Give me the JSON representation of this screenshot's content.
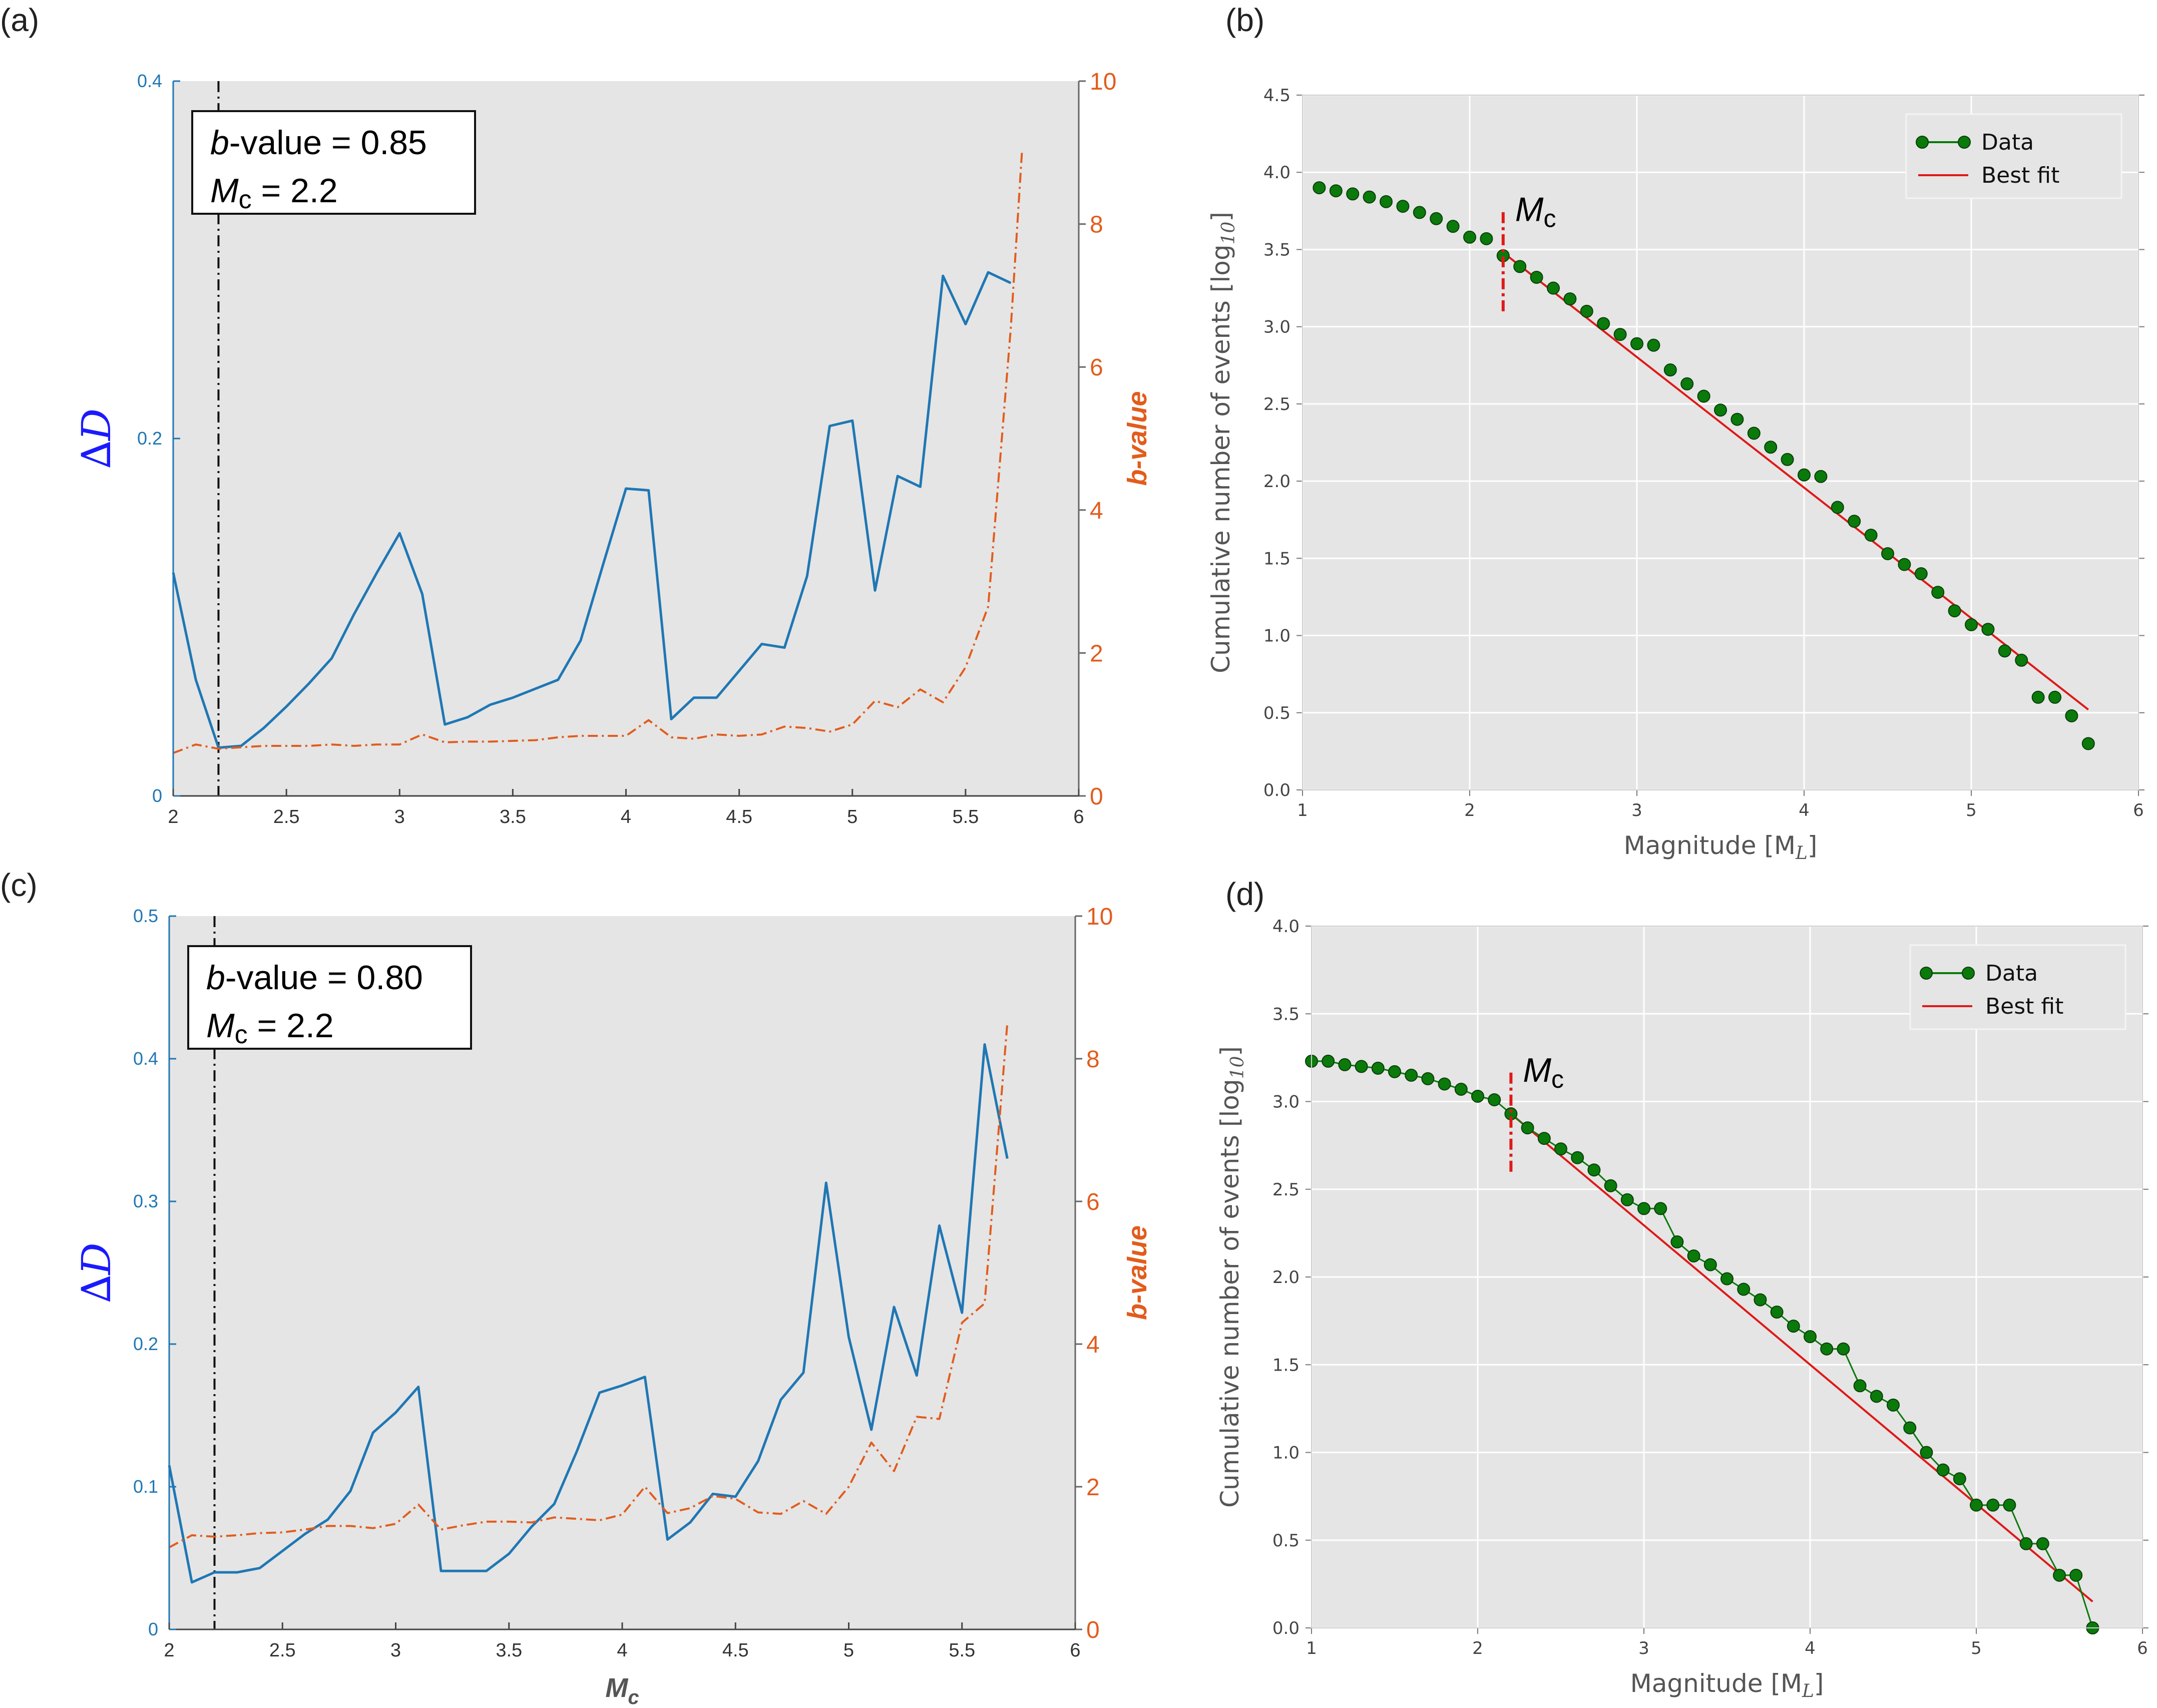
{
  "chart_data": [
    {
      "id": "a",
      "type": "line",
      "panel_label": "(a)",
      "annotation": {
        "line1_prefix": "b",
        "line1_rest": "-value = 0.85",
        "line2_prefix": "M",
        "line2_sub": "c",
        "line2_rest": " = 2.2"
      },
      "left_ylabel": "∆D",
      "right_ylabel": "b-value",
      "xlim": [
        2,
        6
      ],
      "ylim_left": [
        0,
        0.4
      ],
      "ylim_right": [
        0,
        10
      ],
      "xticks": [
        "2",
        "2.5",
        "3",
        "3.5",
        "4",
        "4.5",
        "5",
        "5.5",
        "6"
      ],
      "yticks_left": [
        "0",
        "0.2",
        "0.4"
      ],
      "yticks_right": [
        "0",
        "2",
        "4",
        "6",
        "8",
        "10"
      ],
      "mc_line_x": 2.2,
      "series": [
        {
          "name": "∆D",
          "axis": "left",
          "color": "#1f77b4",
          "x": [
            2.0,
            2.1,
            2.2,
            2.3,
            2.4,
            2.5,
            2.6,
            2.7,
            2.8,
            2.9,
            3.0,
            3.1,
            3.2,
            3.3,
            3.4,
            3.5,
            3.6,
            3.7,
            3.8,
            3.9,
            4.0,
            4.1,
            4.2,
            4.3,
            4.4,
            4.5,
            4.6,
            4.7,
            4.8,
            4.9,
            5.0,
            5.1,
            5.2,
            5.3,
            5.4,
            5.5,
            5.6,
            5.7
          ],
          "y": [
            0.125,
            0.065,
            0.027,
            0.028,
            0.038,
            0.05,
            0.063,
            0.077,
            0.102,
            0.125,
            0.147,
            0.113,
            0.04,
            0.044,
            0.051,
            0.055,
            0.06,
            0.065,
            0.087,
            0.13,
            0.172,
            0.171,
            0.043,
            0.055,
            0.055,
            0.07,
            0.085,
            0.083,
            0.123,
            0.207,
            0.21,
            0.115,
            0.179,
            0.173,
            0.291,
            0.264,
            0.293,
            0.287
          ]
        },
        {
          "name": "b-value",
          "axis": "right",
          "color": "#e25c1c",
          "dash": true,
          "x": [
            2.0,
            2.1,
            2.2,
            2.3,
            2.4,
            2.5,
            2.6,
            2.7,
            2.8,
            2.9,
            3.0,
            3.1,
            3.2,
            3.3,
            3.4,
            3.5,
            3.6,
            3.7,
            3.8,
            3.9,
            4.0,
            4.1,
            4.2,
            4.3,
            4.4,
            4.5,
            4.6,
            4.7,
            4.8,
            4.9,
            5.0,
            5.1,
            5.2,
            5.3,
            5.4,
            5.5,
            5.6,
            5.7,
            5.75
          ],
          "y": [
            0.6,
            0.72,
            0.66,
            0.68,
            0.7,
            0.7,
            0.7,
            0.72,
            0.7,
            0.72,
            0.72,
            0.86,
            0.75,
            0.76,
            0.76,
            0.77,
            0.78,
            0.82,
            0.84,
            0.84,
            0.84,
            1.06,
            0.82,
            0.8,
            0.86,
            0.84,
            0.86,
            0.97,
            0.95,
            0.9,
            1.0,
            1.33,
            1.24,
            1.49,
            1.31,
            1.8,
            2.65,
            6.55,
            9.05
          ]
        }
      ]
    },
    {
      "id": "b",
      "type": "scatter",
      "panel_label": "(b)",
      "xlabel": "Magnitude [M",
      "xlabel_sub": "L",
      "xlabel_end": "]",
      "ylabel": "Cumulative number of events [log",
      "ylabel_sub": "10",
      "ylabel_end": "]",
      "xlim": [
        1,
        6
      ],
      "ylim": [
        0,
        4.5
      ],
      "xticks": [
        "1",
        "2",
        "3",
        "4",
        "5",
        "6"
      ],
      "yticks": [
        "0.0",
        "0.5",
        "1.0",
        "1.5",
        "2.0",
        "2.5",
        "3.0",
        "3.5",
        "4.0",
        "4.5"
      ],
      "mc_label_main": "M",
      "mc_label_sub": "c",
      "mc_x": 2.2,
      "mc_y_range": [
        3.1,
        3.75
      ],
      "legend": {
        "position": "top-right",
        "items": [
          "Data",
          "Best fit"
        ]
      },
      "data": {
        "name": "Data",
        "color": "#0a7a0a",
        "line": false,
        "x": [
          1.1,
          1.2,
          1.3,
          1.4,
          1.5,
          1.6,
          1.7,
          1.8,
          1.9,
          2.0,
          2.1,
          2.2,
          2.3,
          2.4,
          2.5,
          2.6,
          2.7,
          2.8,
          2.9,
          3.0,
          3.1,
          3.2,
          3.3,
          3.4,
          3.5,
          3.6,
          3.7,
          3.8,
          3.9,
          4.0,
          4.1,
          4.2,
          4.3,
          4.4,
          4.5,
          4.6,
          4.7,
          4.8,
          4.9,
          5.0,
          5.1,
          5.2,
          5.3,
          5.4,
          5.5,
          5.6,
          5.7
        ],
        "y": [
          3.9,
          3.88,
          3.86,
          3.84,
          3.81,
          3.78,
          3.74,
          3.7,
          3.65,
          3.58,
          3.57,
          3.46,
          3.39,
          3.32,
          3.25,
          3.18,
          3.1,
          3.02,
          2.95,
          2.89,
          2.88,
          2.72,
          2.63,
          2.55,
          2.46,
          2.4,
          2.31,
          2.22,
          2.14,
          2.04,
          2.03,
          1.83,
          1.74,
          1.65,
          1.53,
          1.46,
          1.4,
          1.28,
          1.16,
          1.07,
          1.04,
          0.9,
          0.84,
          0.6,
          0.6,
          0.48,
          0.3
        ]
      },
      "fit": {
        "name": "Best fit",
        "color": "#e01818",
        "x": [
          2.2,
          5.7
        ],
        "y": [
          3.48,
          0.52
        ]
      }
    },
    {
      "id": "c",
      "type": "line",
      "panel_label": "(c)",
      "annotation": {
        "line1_prefix": "b",
        "line1_rest": "-value = 0.80",
        "line2_prefix": "M",
        "line2_sub": "c",
        "line2_rest": " = 2.2"
      },
      "left_ylabel": "∆D",
      "right_ylabel": "b-value",
      "xlabel_main": "M",
      "xlabel_sub": "c",
      "xlim": [
        2,
        6
      ],
      "ylim_left": [
        0,
        0.5
      ],
      "ylim_right": [
        0,
        10
      ],
      "xticks": [
        "2",
        "2.5",
        "3",
        "3.5",
        "4",
        "4.5",
        "5",
        "5.5",
        "6"
      ],
      "yticks_left": [
        "0",
        "0.1",
        "0.2",
        "0.3",
        "0.4",
        "0.5"
      ],
      "yticks_right": [
        "0",
        "2",
        "4",
        "6",
        "8",
        "10"
      ],
      "mc_line_x": 2.2,
      "series": [
        {
          "name": "∆D",
          "axis": "left",
          "color": "#1f77b4",
          "x": [
            2.0,
            2.1,
            2.2,
            2.3,
            2.4,
            2.5,
            2.6,
            2.7,
            2.8,
            2.9,
            3.0,
            3.1,
            3.2,
            3.3,
            3.4,
            3.5,
            3.6,
            3.7,
            3.8,
            3.9,
            4.0,
            4.1,
            4.2,
            4.3,
            4.4,
            4.5,
            4.6,
            4.7,
            4.8,
            4.9,
            5.0,
            5.1,
            5.2,
            5.3,
            5.4,
            5.5,
            5.6,
            5.7
          ],
          "y": [
            0.115,
            0.033,
            0.04,
            0.04,
            0.043,
            0.055,
            0.067,
            0.077,
            0.097,
            0.138,
            0.152,
            0.17,
            0.041,
            0.041,
            0.041,
            0.053,
            0.072,
            0.088,
            0.125,
            0.166,
            0.171,
            0.177,
            0.063,
            0.075,
            0.095,
            0.093,
            0.118,
            0.161,
            0.18,
            0.313,
            0.205,
            0.14,
            0.226,
            0.178,
            0.283,
            0.222,
            0.41,
            0.33
          ]
        },
        {
          "name": "b-value",
          "axis": "right",
          "color": "#e25c1c",
          "dash": true,
          "x": [
            2.0,
            2.1,
            2.2,
            2.3,
            2.4,
            2.5,
            2.6,
            2.7,
            2.8,
            2.9,
            3.0,
            3.1,
            3.2,
            3.3,
            3.4,
            3.5,
            3.6,
            3.7,
            3.8,
            3.9,
            4.0,
            4.1,
            4.2,
            4.3,
            4.4,
            4.5,
            4.6,
            4.7,
            4.8,
            4.9,
            5.0,
            5.1,
            5.2,
            5.3,
            5.4,
            5.5,
            5.6,
            5.7
          ],
          "y": [
            1.15,
            1.32,
            1.3,
            1.32,
            1.35,
            1.36,
            1.4,
            1.45,
            1.45,
            1.42,
            1.48,
            1.75,
            1.4,
            1.46,
            1.51,
            1.51,
            1.5,
            1.57,
            1.55,
            1.53,
            1.61,
            2.0,
            1.63,
            1.7,
            1.87,
            1.83,
            1.64,
            1.62,
            1.8,
            1.62,
            2.0,
            2.62,
            2.22,
            2.98,
            2.95,
            4.3,
            4.57,
            8.5
          ]
        }
      ]
    },
    {
      "id": "d",
      "type": "scatter",
      "panel_label": "(d)",
      "xlabel": "Magnitude [M",
      "xlabel_sub": "L",
      "xlabel_end": "]",
      "ylabel": "Cumulative number of events [log",
      "ylabel_sub": "10",
      "ylabel_end": "]",
      "xlim": [
        1,
        6
      ],
      "ylim": [
        0,
        4
      ],
      "xticks": [
        "1",
        "2",
        "3",
        "4",
        "5",
        "6"
      ],
      "yticks": [
        "0.0",
        "0.5",
        "1.0",
        "1.5",
        "2.0",
        "2.5",
        "3.0",
        "3.5",
        "4.0"
      ],
      "mc_label_main": "M",
      "mc_label_sub": "c",
      "mc_x": 2.2,
      "mc_y_range": [
        2.6,
        3.17
      ],
      "legend": {
        "position": "top-right",
        "items": [
          "Data",
          "Best fit"
        ]
      },
      "data": {
        "name": "Data",
        "color": "#0a7a0a",
        "line": true,
        "x": [
          1.0,
          1.1,
          1.2,
          1.3,
          1.4,
          1.5,
          1.6,
          1.7,
          1.8,
          1.9,
          2.0,
          2.1,
          2.2,
          2.3,
          2.4,
          2.5,
          2.6,
          2.7,
          2.8,
          2.9,
          3.0,
          3.1,
          3.2,
          3.3,
          3.4,
          3.5,
          3.6,
          3.7,
          3.8,
          3.9,
          4.0,
          4.1,
          4.2,
          4.3,
          4.4,
          4.5,
          4.6,
          4.7,
          4.8,
          4.9,
          5.0,
          5.1,
          5.2,
          5.3,
          5.4,
          5.5,
          5.6,
          5.7
        ],
        "y": [
          3.23,
          3.23,
          3.21,
          3.2,
          3.19,
          3.17,
          3.15,
          3.13,
          3.1,
          3.07,
          3.03,
          3.01,
          2.93,
          2.85,
          2.79,
          2.73,
          2.68,
          2.61,
          2.52,
          2.44,
          2.39,
          2.39,
          2.2,
          2.12,
          2.07,
          1.99,
          1.93,
          1.87,
          1.8,
          1.72,
          1.66,
          1.59,
          1.59,
          1.38,
          1.32,
          1.27,
          1.14,
          1.0,
          0.9,
          0.85,
          0.7,
          0.7,
          0.7,
          0.48,
          0.48,
          0.3,
          0.3,
          0.0
        ]
      },
      "fit": {
        "name": "Best fit",
        "color": "#e01818",
        "x": [
          2.2,
          5.7
        ],
        "y": [
          2.93,
          0.15
        ]
      }
    }
  ]
}
